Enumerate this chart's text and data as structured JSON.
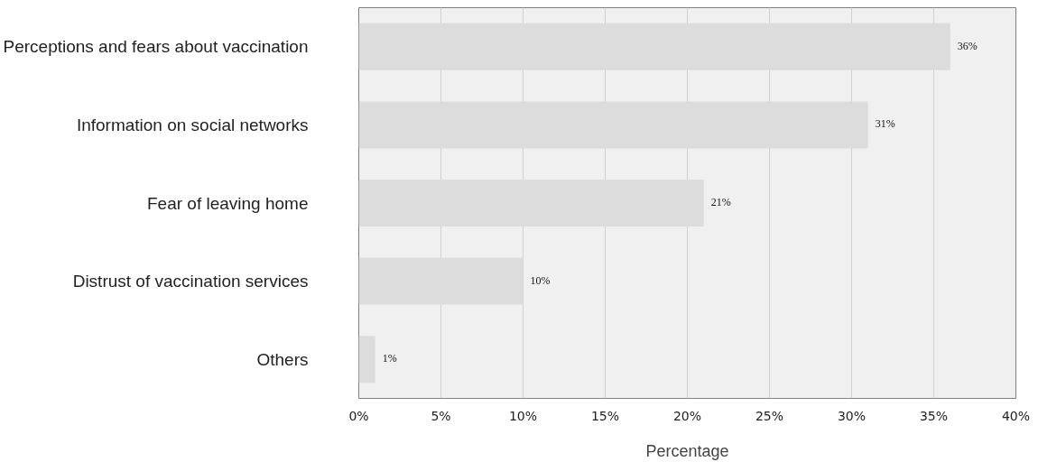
{
  "chart_data": {
    "type": "bar",
    "orientation": "horizontal",
    "categories": [
      "Perceptions and fears about vaccination",
      "Information on social networks",
      "Fear of leaving home",
      "Distrust of vaccination services",
      "Others"
    ],
    "values": [
      36,
      31,
      21,
      10,
      1
    ],
    "color": "#dcdcdc",
    "value_labels": [
      "36%",
      "31%",
      "21%",
      "10%",
      "1%"
    ],
    "xlim": [
      0,
      40
    ],
    "xticks": [
      {
        "value": 0,
        "label": "0%"
      },
      {
        "value": 5,
        "label": "5%"
      },
      {
        "value": 10,
        "label": "10%"
      },
      {
        "value": 15,
        "label": "15%"
      },
      {
        "value": 20,
        "label": "20%"
      },
      {
        "value": 25,
        "label": "25%"
      },
      {
        "value": 30,
        "label": "30%"
      },
      {
        "value": 35,
        "label": "35%"
      },
      {
        "value": 40,
        "label": "40%"
      }
    ],
    "xlabel": "Percentage",
    "grid": "x"
  }
}
